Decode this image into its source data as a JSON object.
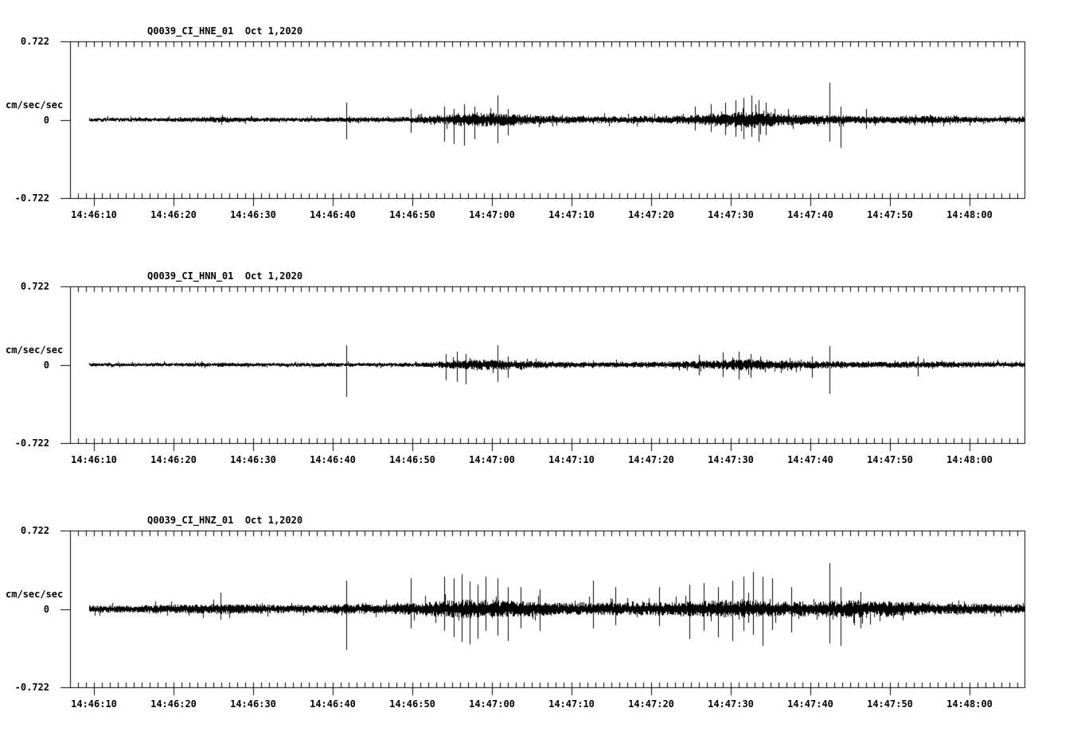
{
  "app": {
    "description_visible_text_only": "Three stacked seismogram strip charts, black on white",
    "colors": {
      "trace": "#000000",
      "background": "#ffffff",
      "text": "#000000"
    }
  },
  "chart_data": [
    {
      "type": "line",
      "subtype": "seismogram",
      "title": "Q0039_CI_HNE_01",
      "date_label": "Oct 1,2020",
      "ylabel": "cm/sec/sec",
      "ylim": [
        -0.722,
        0.722
      ],
      "ytick_labels": [
        "0.722",
        "0",
        "-0.722"
      ],
      "xtick_labels": [
        "14:46:10",
        "14:46:20",
        "14:46:30",
        "14:46:40",
        "14:46:50",
        "14:47:00",
        "14:47:10",
        "14:47:20",
        "14:47:30",
        "14:47:40",
        "14:47:50",
        "14:48:00"
      ],
      "xtick_seconds": [
        10,
        20,
        30,
        40,
        50,
        60,
        70,
        80,
        90,
        100,
        110,
        120
      ],
      "seed": 11,
      "envelope_t_amp": [
        [
          9.4,
          0.016
        ],
        [
          22,
          0.018
        ],
        [
          25.5,
          0.026
        ],
        [
          28,
          0.02
        ],
        [
          38,
          0.018
        ],
        [
          42,
          0.022
        ],
        [
          46,
          0.02
        ],
        [
          50,
          0.024
        ],
        [
          53,
          0.032
        ],
        [
          55,
          0.05
        ],
        [
          57,
          0.06
        ],
        [
          59,
          0.062
        ],
        [
          61,
          0.055
        ],
        [
          63,
          0.05
        ],
        [
          65,
          0.04
        ],
        [
          68,
          0.032
        ],
        [
          72,
          0.03
        ],
        [
          76,
          0.028
        ],
        [
          80,
          0.03
        ],
        [
          83,
          0.034
        ],
        [
          85,
          0.04
        ],
        [
          87,
          0.048
        ],
        [
          89,
          0.055
        ],
        [
          91,
          0.065
        ],
        [
          93,
          0.072
        ],
        [
          95,
          0.065
        ],
        [
          97,
          0.05
        ],
        [
          99,
          0.042
        ],
        [
          102,
          0.04
        ],
        [
          105,
          0.034
        ],
        [
          108,
          0.03
        ],
        [
          112,
          0.032
        ],
        [
          115,
          0.034
        ],
        [
          118,
          0.028
        ],
        [
          121,
          0.024
        ],
        [
          126.9,
          0.022
        ]
      ],
      "spikes_t_up_down": [
        [
          41.7,
          0.16,
          -0.18
        ],
        [
          49.8,
          0.1,
          -0.12
        ],
        [
          54.0,
          0.12,
          -0.2
        ],
        [
          55.2,
          0.1,
          -0.22
        ],
        [
          56.5,
          0.14,
          -0.24
        ],
        [
          57.8,
          0.12,
          -0.18
        ],
        [
          60.7,
          0.22,
          -0.22
        ],
        [
          62.0,
          0.1,
          -0.14
        ],
        [
          85.5,
          0.12,
          -0.1
        ],
        [
          87.5,
          0.14,
          -0.12
        ],
        [
          89.3,
          0.16,
          -0.14
        ],
        [
          90.6,
          0.18,
          -0.16
        ],
        [
          91.6,
          0.2,
          -0.18
        ],
        [
          92.6,
          0.22,
          -0.16
        ],
        [
          93.5,
          0.18,
          -0.2
        ],
        [
          94.4,
          0.16,
          -0.14
        ],
        [
          102.4,
          0.34,
          -0.2
        ],
        [
          103.8,
          0.12,
          -0.26
        ],
        [
          107.0,
          0.1,
          -0.08
        ]
      ]
    },
    {
      "type": "line",
      "subtype": "seismogram",
      "title": "Q0039_CI_HNN_01",
      "date_label": "Oct 1,2020",
      "ylabel": "cm/sec/sec",
      "ylim": [
        -0.722,
        0.722
      ],
      "ytick_labels": [
        "0.722",
        "0",
        "-0.722"
      ],
      "xtick_labels": [
        "14:46:10",
        "14:46:20",
        "14:46:30",
        "14:46:40",
        "14:46:50",
        "14:47:00",
        "14:47:10",
        "14:47:20",
        "14:47:30",
        "14:47:40",
        "14:47:50",
        "14:48:00"
      ],
      "xtick_seconds": [
        10,
        20,
        30,
        40,
        50,
        60,
        70,
        80,
        90,
        100,
        110,
        120
      ],
      "seed": 22,
      "envelope_t_amp": [
        [
          9.4,
          0.014
        ],
        [
          20,
          0.015
        ],
        [
          26,
          0.017
        ],
        [
          32,
          0.015
        ],
        [
          42,
          0.016
        ],
        [
          48,
          0.016
        ],
        [
          52,
          0.02
        ],
        [
          54,
          0.03
        ],
        [
          56,
          0.04
        ],
        [
          58,
          0.044
        ],
        [
          60,
          0.044
        ],
        [
          62,
          0.04
        ],
        [
          64,
          0.035
        ],
        [
          66,
          0.03
        ],
        [
          69,
          0.026
        ],
        [
          73,
          0.022
        ],
        [
          77,
          0.022
        ],
        [
          81,
          0.026
        ],
        [
          84,
          0.03
        ],
        [
          86,
          0.035
        ],
        [
          88,
          0.04
        ],
        [
          90,
          0.046
        ],
        [
          92,
          0.05
        ],
        [
          94,
          0.046
        ],
        [
          96,
          0.04
        ],
        [
          98,
          0.036
        ],
        [
          100,
          0.032
        ],
        [
          103,
          0.03
        ],
        [
          106,
          0.026
        ],
        [
          110,
          0.027
        ],
        [
          114,
          0.028
        ],
        [
          118,
          0.025
        ],
        [
          126.9,
          0.02
        ]
      ],
      "spikes_t_up_down": [
        [
          41.7,
          0.18,
          -0.3
        ],
        [
          54.2,
          0.1,
          -0.14
        ],
        [
          55.6,
          0.12,
          -0.16
        ],
        [
          56.7,
          0.1,
          -0.18
        ],
        [
          60.7,
          0.18,
          -0.16
        ],
        [
          62.0,
          0.08,
          -0.12
        ],
        [
          86.0,
          0.09,
          -0.1
        ],
        [
          89.0,
          0.11,
          -0.12
        ],
        [
          91.0,
          0.12,
          -0.14
        ],
        [
          92.5,
          0.1,
          -0.12
        ],
        [
          100.2,
          0.08,
          -0.12
        ],
        [
          102.4,
          0.17,
          -0.27
        ],
        [
          113.5,
          0.08,
          -0.1
        ]
      ]
    },
    {
      "type": "line",
      "subtype": "seismogram",
      "title": "Q0039_CI_HNZ_01",
      "date_label": "Oct 1,2020",
      "ylabel": "cm/sec/sec",
      "ylim": [
        -0.722,
        0.722
      ],
      "ytick_labels": [
        "0.722",
        "0",
        "-0.722"
      ],
      "xtick_labels": [
        "14:46:10",
        "14:46:20",
        "14:46:30",
        "14:46:40",
        "14:46:50",
        "14:47:00",
        "14:47:10",
        "14:47:20",
        "14:47:30",
        "14:47:40",
        "14:47:50",
        "14:48:00"
      ],
      "xtick_seconds": [
        10,
        20,
        30,
        40,
        50,
        60,
        70,
        80,
        90,
        100,
        110,
        120
      ],
      "seed": 33,
      "envelope_t_amp": [
        [
          9.4,
          0.03
        ],
        [
          15,
          0.032
        ],
        [
          20,
          0.036
        ],
        [
          25,
          0.042
        ],
        [
          28,
          0.044
        ],
        [
          31,
          0.038
        ],
        [
          35,
          0.034
        ],
        [
          39,
          0.036
        ],
        [
          42,
          0.044
        ],
        [
          45,
          0.04
        ],
        [
          48,
          0.046
        ],
        [
          51,
          0.055
        ],
        [
          53,
          0.065
        ],
        [
          55,
          0.075
        ],
        [
          57,
          0.08
        ],
        [
          59,
          0.078
        ],
        [
          61,
          0.072
        ],
        [
          63,
          0.068
        ],
        [
          65,
          0.062
        ],
        [
          67,
          0.056
        ],
        [
          69,
          0.052
        ],
        [
          71,
          0.056
        ],
        [
          73,
          0.052
        ],
        [
          75,
          0.05
        ],
        [
          77,
          0.052
        ],
        [
          79,
          0.054
        ],
        [
          81,
          0.056
        ],
        [
          83,
          0.06
        ],
        [
          85,
          0.066
        ],
        [
          87,
          0.07
        ],
        [
          89,
          0.075
        ],
        [
          91,
          0.075
        ],
        [
          93,
          0.07
        ],
        [
          95,
          0.066
        ],
        [
          97,
          0.062
        ],
        [
          99,
          0.062
        ],
        [
          101,
          0.066
        ],
        [
          103,
          0.07
        ],
        [
          105,
          0.075
        ],
        [
          107,
          0.07
        ],
        [
          109,
          0.066
        ],
        [
          111,
          0.06
        ],
        [
          113,
          0.056
        ],
        [
          115,
          0.05
        ],
        [
          118,
          0.046
        ],
        [
          121,
          0.042
        ],
        [
          126.9,
          0.04
        ]
      ],
      "spikes_t_up_down": [
        [
          25.9,
          0.15,
          -0.1
        ],
        [
          41.7,
          0.26,
          -0.38
        ],
        [
          49.8,
          0.28,
          -0.18
        ],
        [
          54.0,
          0.3,
          -0.2
        ],
        [
          55.2,
          0.28,
          -0.26
        ],
        [
          56.2,
          0.32,
          -0.3
        ],
        [
          57.2,
          0.25,
          -0.33
        ],
        [
          58.2,
          0.22,
          -0.28
        ],
        [
          59.2,
          0.3,
          -0.2
        ],
        [
          60.7,
          0.28,
          -0.25
        ],
        [
          62.0,
          0.2,
          -0.3
        ],
        [
          63.6,
          0.2,
          -0.18
        ],
        [
          66.0,
          0.18,
          -0.2
        ],
        [
          72.7,
          0.26,
          -0.18
        ],
        [
          75.5,
          0.2,
          -0.15
        ],
        [
          81.0,
          0.2,
          -0.16
        ],
        [
          84.8,
          0.22,
          -0.28
        ],
        [
          86.6,
          0.24,
          -0.2
        ],
        [
          88.4,
          0.2,
          -0.26
        ],
        [
          90.2,
          0.26,
          -0.3
        ],
        [
          91.6,
          0.3,
          -0.2
        ],
        [
          92.8,
          0.34,
          -0.24
        ],
        [
          94.0,
          0.3,
          -0.34
        ],
        [
          95.2,
          0.28,
          -0.2
        ],
        [
          97.6,
          0.2,
          -0.22
        ],
        [
          102.4,
          0.42,
          -0.32
        ],
        [
          103.8,
          0.2,
          -0.34
        ],
        [
          106.3,
          0.16,
          -0.18
        ]
      ]
    }
  ]
}
